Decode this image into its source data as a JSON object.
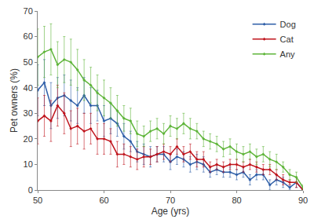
{
  "chart_data": {
    "type": "line",
    "x_label": "Age (yrs)",
    "y_label": "Pet owners (%)",
    "x": [
      50,
      51,
      52,
      53,
      54,
      55,
      56,
      57,
      58,
      59,
      60,
      61,
      62,
      63,
      64,
      65,
      66,
      67,
      68,
      69,
      70,
      71,
      72,
      73,
      74,
      75,
      76,
      77,
      78,
      79,
      80,
      81,
      82,
      83,
      84,
      85,
      86,
      87,
      88,
      89,
      90
    ],
    "xlim": [
      50,
      90
    ],
    "xticks": [
      50,
      60,
      70,
      80,
      90
    ],
    "ylim": [
      0,
      70
    ],
    "yticks": [
      0,
      10,
      20,
      30,
      40,
      50,
      60,
      70
    ],
    "grid": false,
    "legend": "top-right",
    "marker": "diamond",
    "line_style": "solid",
    "series": [
      {
        "name": "Dog",
        "color": "#2f5fa8",
        "values": [
          39,
          42,
          33,
          36,
          37,
          35,
          33,
          37,
          33,
          33,
          27,
          28,
          26,
          21,
          19,
          15,
          14,
          13,
          14,
          14,
          11,
          13,
          12,
          10,
          11,
          10,
          7,
          8,
          7,
          7,
          6,
          7,
          4,
          6,
          6,
          2,
          4,
          3,
          1,
          3,
          0
        ],
        "error": [
          10,
          9,
          9,
          8,
          8,
          8,
          7,
          7,
          7,
          6,
          6,
          6,
          5,
          5,
          4,
          4,
          4,
          4,
          3,
          3,
          3,
          3,
          3,
          3,
          3,
          3,
          2,
          2,
          2,
          2,
          2,
          2,
          2,
          2,
          2,
          2,
          2,
          2,
          1,
          2,
          0
        ]
      },
      {
        "name": "Cat",
        "color": "#c0141c",
        "values": [
          27,
          29,
          27,
          33,
          30,
          24,
          25,
          23,
          24,
          20,
          20,
          19,
          14,
          14,
          13,
          12,
          13,
          13,
          14,
          15,
          14,
          17,
          14,
          15,
          12,
          12,
          9,
          10,
          9,
          10,
          10,
          9,
          10,
          9,
          8,
          8,
          6,
          4,
          3,
          3,
          0
        ],
        "error": [
          9,
          8,
          8,
          8,
          8,
          7,
          7,
          7,
          6,
          6,
          6,
          5,
          5,
          4,
          4,
          4,
          4,
          3,
          3,
          3,
          3,
          3,
          3,
          3,
          3,
          3,
          2,
          2,
          2,
          2,
          2,
          2,
          2,
          2,
          2,
          2,
          2,
          2,
          1,
          2,
          0
        ]
      },
      {
        "name": "Any",
        "color": "#5fb53a",
        "values": [
          52,
          54,
          55,
          49,
          51,
          50,
          47,
          43,
          41,
          38,
          36,
          34,
          31,
          28,
          27,
          22,
          21,
          23,
          24,
          22,
          25,
          24,
          26,
          24,
          23,
          20,
          19,
          18,
          16,
          17,
          15,
          14,
          15,
          13,
          14,
          12,
          11,
          9,
          6,
          5,
          1
        ],
        "error": [
          11,
          10,
          10,
          9,
          9,
          9,
          8,
          8,
          7,
          7,
          7,
          6,
          6,
          5,
          5,
          5,
          4,
          4,
          4,
          4,
          4,
          4,
          4,
          4,
          3,
          3,
          3,
          3,
          3,
          3,
          3,
          3,
          3,
          3,
          3,
          3,
          3,
          2,
          2,
          2,
          1
        ]
      }
    ]
  }
}
